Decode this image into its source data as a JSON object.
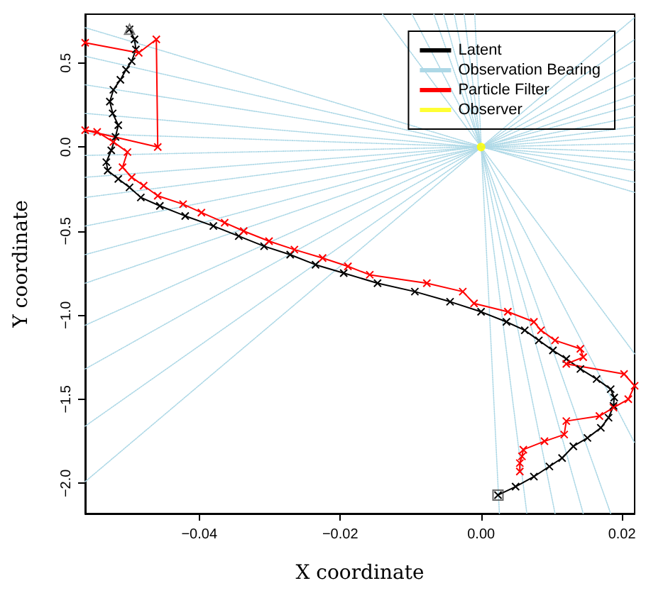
{
  "chart_data": {
    "type": "line",
    "xlabel": "X coordinate",
    "ylabel": "Y coordinate",
    "xlim": [
      -0.0562,
      0.0218
    ],
    "ylim": [
      -2.18,
      0.79
    ],
    "xticks": [
      {
        "value": -0.04,
        "label": "−0.04"
      },
      {
        "value": -0.02,
        "label": "−0.02"
      },
      {
        "value": 0,
        "label": "0.00"
      },
      {
        "value": 0.02,
        "label": "0.02"
      }
    ],
    "yticks": [
      {
        "value": -2,
        "label": "−2.0"
      },
      {
        "value": -1.5,
        "label": "−1.5"
      },
      {
        "value": -1,
        "label": "−1.0"
      },
      {
        "value": -0.5,
        "label": "−0.5"
      },
      {
        "value": 0,
        "label": "0.0"
      },
      {
        "value": 0.5,
        "label": "0.5"
      }
    ],
    "grid": false,
    "legend": "top right",
    "series": [
      {
        "name": "Latent",
        "color": "#000000",
        "line_style": "solid",
        "marker": "cross",
        "x": [
          -0.0499,
          -0.0492,
          -0.049,
          -0.0496,
          -0.0504,
          -0.0512,
          -0.0522,
          -0.0527,
          -0.0523,
          -0.0515,
          -0.0519,
          -0.0525,
          -0.0532,
          -0.053,
          -0.0515,
          -0.0499,
          -0.0483,
          -0.0456,
          -0.042,
          -0.038,
          -0.0344,
          -0.0308,
          -0.0271,
          -0.0235,
          -0.0195,
          -0.0147,
          -0.0094,
          -0.0044,
          0.0,
          0.0036,
          0.0062,
          0.0082,
          0.0102,
          0.0121,
          0.0141,
          0.0164,
          0.0184,
          0.0189,
          0.0188,
          0.0181,
          0.017,
          0.0151,
          0.0131,
          0.0115,
          0.0097,
          0.0075,
          0.0049,
          0.0024
        ],
        "values": [
          0.7,
          0.64,
          0.58,
          0.51,
          0.46,
          0.4,
          0.34,
          0.27,
          0.2,
          0.13,
          0.06,
          -0.02,
          -0.09,
          -0.14,
          -0.19,
          -0.24,
          -0.3,
          -0.35,
          -0.41,
          -0.47,
          -0.53,
          -0.59,
          -0.64,
          -0.7,
          -0.75,
          -0.81,
          -0.86,
          -0.92,
          -0.98,
          -1.04,
          -1.09,
          -1.15,
          -1.21,
          -1.26,
          -1.32,
          -1.38,
          -1.44,
          -1.49,
          -1.54,
          -1.61,
          -1.67,
          -1.73,
          -1.78,
          -1.85,
          -1.9,
          -1.96,
          -2.02,
          -2.07
        ]
      },
      {
        "name": "Observation Bearing",
        "color": "#add8e6",
        "line_style": "dotted",
        "marker": "none",
        "x": [
          -0.0562,
          0.0218
        ],
        "values": [
          0.71,
          -0.27
        ]
      },
      {
        "color": "#add8e6",
        "line_style": "dotted",
        "marker": "none",
        "x": [
          -0.0562,
          0.0218
        ],
        "values": [
          0.54,
          -0.21
        ]
      },
      {
        "color": "#add8e6",
        "line_style": "dotted",
        "marker": "none",
        "x": [
          -0.0562,
          0.0218
        ],
        "values": [
          0.37,
          -0.14
        ]
      },
      {
        "color": "#add8e6",
        "line_style": "dotted",
        "marker": "none",
        "x": [
          -0.0562,
          0.0218
        ],
        "values": [
          0.2,
          -0.08
        ]
      },
      {
        "color": "#add8e6",
        "line_style": "dotted",
        "marker": "none",
        "x": [
          -0.0562,
          0.0218
        ],
        "values": [
          0.08,
          -0.03
        ]
      },
      {
        "color": "#add8e6",
        "line_style": "dotted",
        "marker": "none",
        "x": [
          -0.0562,
          0.0218
        ],
        "values": [
          -0.05,
          0.02
        ]
      },
      {
        "color": "#add8e6",
        "line_style": "dotted",
        "marker": "none",
        "x": [
          -0.0562,
          0.0218
        ],
        "values": [
          -0.18,
          0.07
        ]
      },
      {
        "color": "#add8e6",
        "line_style": "dotted",
        "marker": "none",
        "x": [
          -0.0562,
          0.0218
        ],
        "values": [
          -0.3,
          0.12
        ]
      },
      {
        "color": "#add8e6",
        "line_style": "dotted",
        "marker": "none",
        "x": [
          -0.0562,
          0.0218
        ],
        "values": [
          -0.47,
          0.18
        ]
      },
      {
        "color": "#add8e6",
        "line_style": "dotted",
        "marker": "none",
        "x": [
          -0.0562,
          0.0218
        ],
        "values": [
          -0.64,
          0.25
        ]
      },
      {
        "color": "#add8e6",
        "line_style": "dotted",
        "marker": "none",
        "x": [
          -0.0562,
          0.0218
        ],
        "values": [
          -0.81,
          0.31
        ]
      },
      {
        "color": "#add8e6",
        "line_style": "dotted",
        "marker": "none",
        "x": [
          -0.0562,
          0.0218
        ],
        "values": [
          -1.06,
          0.41
        ]
      },
      {
        "color": "#add8e6",
        "line_style": "dotted",
        "marker": "none",
        "x": [
          -0.0562,
          0.0218
        ],
        "values": [
          -1.32,
          0.51
        ]
      },
      {
        "color": "#add8e6",
        "line_style": "dotted",
        "marker": "none",
        "x": [
          -0.0562,
          0.0218
        ],
        "values": [
          -1.66,
          0.64
        ]
      },
      {
        "color": "#add8e6",
        "line_style": "dotted",
        "marker": "none",
        "x": [
          -0.0562,
          0.0218
        ],
        "values": [
          -1.99,
          0.77
        ]
      },
      {
        "color": "#add8e6",
        "line_style": "dotted",
        "marker": "none",
        "x": [
          -0.0009,
          0.0026
        ],
        "values": [
          0.79,
          -2.18
        ]
      },
      {
        "color": "#add8e6",
        "line_style": "dotted",
        "marker": "none",
        "x": [
          -0.0024,
          0.0065
        ],
        "values": [
          0.79,
          -2.18
        ]
      },
      {
        "color": "#add8e6",
        "line_style": "dotted",
        "marker": "none",
        "x": [
          -0.0038,
          0.0105
        ],
        "values": [
          0.79,
          -2.18
        ]
      },
      {
        "color": "#add8e6",
        "line_style": "dotted",
        "marker": "none",
        "x": [
          -0.0053,
          0.0145
        ],
        "values": [
          0.79,
          -2.18
        ]
      },
      {
        "color": "#add8e6",
        "line_style": "dotted",
        "marker": "none",
        "x": [
          -0.0067,
          0.0184
        ],
        "values": [
          0.79,
          -2.18
        ]
      },
      {
        "color": "#add8e6",
        "line_style": "dotted",
        "marker": "none",
        "x": [
          -0.0098,
          0.0218
        ],
        "values": [
          0.79,
          -1.76
        ]
      },
      {
        "color": "#add8e6",
        "line_style": "dotted",
        "marker": "none",
        "x": [
          -0.014,
          0.0218
        ],
        "values": [
          0.79,
          -1.23
        ]
      },
      {
        "name": "Particle Filter",
        "color": "#ff0000",
        "line_style": "solid",
        "marker": "cross",
        "x": [
          -0.0562,
          -0.0486,
          -0.0461,
          -0.0459,
          -0.0562,
          -0.0545,
          -0.0522,
          -0.0502,
          -0.0509,
          -0.0496,
          -0.0479,
          -0.0459,
          -0.0423,
          -0.0397,
          -0.0364,
          -0.0337,
          -0.0301,
          -0.0265,
          -0.0225,
          -0.0189,
          -0.0158,
          -0.0077,
          -0.0026,
          -0.001,
          0.0038,
          0.0075,
          0.0085,
          0.0105,
          0.0141,
          0.0145,
          0.0121,
          0.0203,
          0.0218,
          0.0209,
          0.0188,
          0.0168,
          0.0121,
          0.0118,
          0.009,
          0.006,
          0.0058,
          0.0055,
          0.0055
        ],
        "values": [
          0.62,
          0.56,
          0.64,
          0.0,
          0.1,
          0.09,
          0.03,
          -0.03,
          -0.12,
          -0.18,
          -0.23,
          -0.29,
          -0.34,
          -0.39,
          -0.45,
          -0.5,
          -0.56,
          -0.61,
          -0.66,
          -0.71,
          -0.76,
          -0.81,
          -0.86,
          -0.93,
          -0.98,
          -1.04,
          -1.09,
          -1.15,
          -1.2,
          -1.25,
          -1.29,
          -1.35,
          -1.42,
          -1.5,
          -1.55,
          -1.6,
          -1.63,
          -1.71,
          -1.75,
          -1.8,
          -1.84,
          -1.88,
          -1.93
        ]
      },
      {
        "name": "Observer",
        "type": "scatter",
        "color": "#ffff00",
        "marker": "circle",
        "x": [
          0.0
        ],
        "values": [
          0.0
        ]
      },
      {
        "type": "scatter",
        "color": "#555555",
        "marker": "triangle",
        "x": [
          -0.0499
        ],
        "values": [
          0.7
        ]
      },
      {
        "type": "scatter",
        "color": "#444444",
        "marker": "square",
        "x": [
          0.0024
        ],
        "values": [
          -2.07
        ]
      }
    ]
  }
}
